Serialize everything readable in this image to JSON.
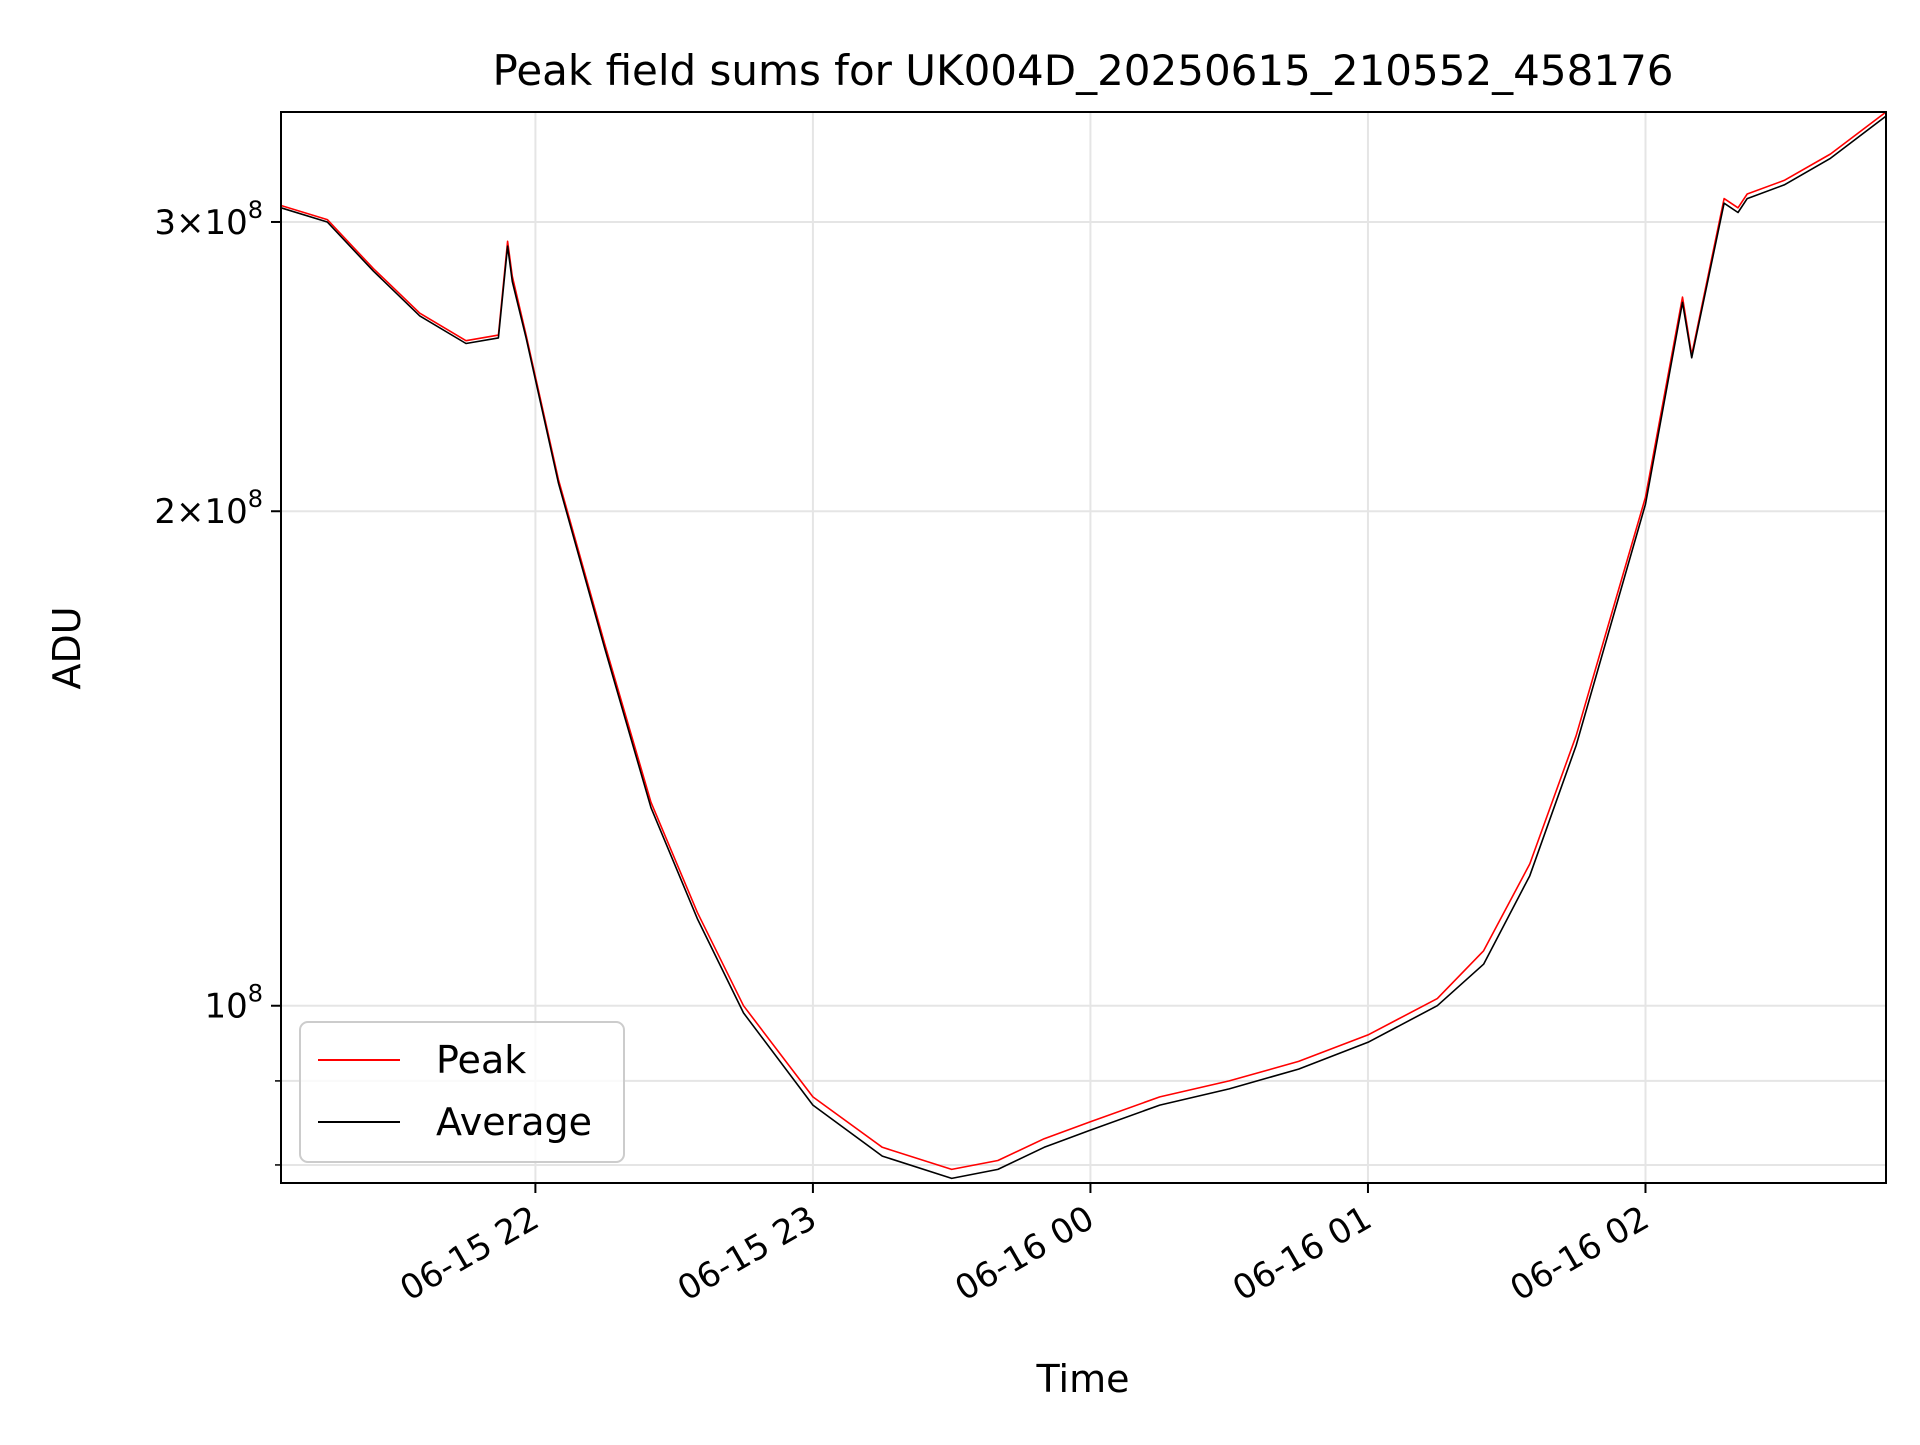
{
  "chart_data": {
    "type": "line",
    "title": "Peak field sums for UK004D_20250615_210552_458176",
    "xlabel": "Time",
    "ylabel": "ADU",
    "y_scale": "log",
    "ylim": [
      78000000,
      350000000
    ],
    "xlim": [
      "2025-06-15 21:05",
      "2025-06-16 02:52"
    ],
    "grid": true,
    "legend_position": "lower-left",
    "x_tick_labels": [
      "06-15 22",
      "06-15 23",
      "06-16 00",
      "06-16 01",
      "06-16 02"
    ],
    "x_ticks": [
      "2025-06-15 22:00",
      "2025-06-15 23:00",
      "2025-06-16 00:00",
      "2025-06-16 01:00",
      "2025-06-16 02:00"
    ],
    "y_major_ticks": [
      {
        "value": 100000000,
        "mantissa": "",
        "exponent": "8"
      },
      {
        "value": 200000000,
        "mantissa": "2",
        "exponent": "8"
      },
      {
        "value": 300000000,
        "mantissa": "3",
        "exponent": "8"
      }
    ],
    "series": [
      {
        "name": "Peak",
        "color": "#ff0000",
        "x": [
          "2025-06-15 21:05",
          "2025-06-15 21:15",
          "2025-06-15 21:25",
          "2025-06-15 21:35",
          "2025-06-15 21:45",
          "2025-06-15 21:52",
          "2025-06-15 21:54",
          "2025-06-15 21:55",
          "2025-06-15 21:58",
          "2025-06-15 22:05",
          "2025-06-15 22:15",
          "2025-06-15 22:25",
          "2025-06-15 22:35",
          "2025-06-15 22:45",
          "2025-06-15 23:00",
          "2025-06-15 23:15",
          "2025-06-15 23:30",
          "2025-06-15 23:40",
          "2025-06-15 23:50",
          "2025-06-16 00:00",
          "2025-06-16 00:15",
          "2025-06-16 00:30",
          "2025-06-16 00:45",
          "2025-06-16 01:00",
          "2025-06-16 01:15",
          "2025-06-16 01:25",
          "2025-06-16 01:35",
          "2025-06-16 01:45",
          "2025-06-16 02:00",
          "2025-06-16 02:08",
          "2025-06-16 02:10",
          "2025-06-16 02:17",
          "2025-06-16 02:20",
          "2025-06-16 02:22",
          "2025-06-16 02:30",
          "2025-06-16 02:40",
          "2025-06-16 02:52"
        ],
        "y": [
          307000000,
          301000000,
          281000000,
          264000000,
          254000000,
          256000000,
          292000000,
          278000000,
          256000000,
          209000000,
          166000000,
          133000000,
          114000000,
          100000000,
          88000000,
          82000000,
          79500000,
          80500000,
          83000000,
          85000000,
          88000000,
          90000000,
          92500000,
          96000000,
          101000000,
          108000000,
          122000000,
          146000000,
          204000000,
          270000000,
          249000000,
          310000000,
          306000000,
          312000000,
          318000000,
          330000000,
          350000000
        ]
      },
      {
        "name": "Average",
        "color": "#000000",
        "x": [
          "2025-06-15 21:05",
          "2025-06-15 21:15",
          "2025-06-15 21:25",
          "2025-06-15 21:35",
          "2025-06-15 21:45",
          "2025-06-15 21:52",
          "2025-06-15 21:54",
          "2025-06-15 21:55",
          "2025-06-15 21:58",
          "2025-06-15 22:05",
          "2025-06-15 22:15",
          "2025-06-15 22:25",
          "2025-06-15 22:35",
          "2025-06-15 22:45",
          "2025-06-15 23:00",
          "2025-06-15 23:15",
          "2025-06-15 23:30",
          "2025-06-15 23:40",
          "2025-06-15 23:50",
          "2025-06-16 00:00",
          "2025-06-16 00:15",
          "2025-06-16 00:30",
          "2025-06-16 00:45",
          "2025-06-16 01:00",
          "2025-06-16 01:15",
          "2025-06-16 01:25",
          "2025-06-16 01:35",
          "2025-06-16 01:45",
          "2025-06-16 02:00",
          "2025-06-16 02:08",
          "2025-06-16 02:10",
          "2025-06-16 02:17",
          "2025-06-16 02:20",
          "2025-06-16 02:22",
          "2025-06-16 02:30",
          "2025-06-16 02:40",
          "2025-06-16 02:52"
        ],
        "y": [
          306000000,
          300000000,
          280000000,
          263000000,
          253000000,
          255000000,
          290000000,
          276000000,
          255000000,
          208000000,
          165000000,
          132000000,
          113000000,
          99000000,
          87000000,
          81000000,
          78500000,
          79500000,
          82000000,
          84000000,
          87000000,
          89000000,
          91500000,
          95000000,
          100000000,
          106000000,
          120000000,
          144000000,
          202000000,
          268000000,
          248000000,
          308000000,
          304000000,
          310000000,
          316000000,
          328000000,
          348000000
        ]
      }
    ]
  }
}
